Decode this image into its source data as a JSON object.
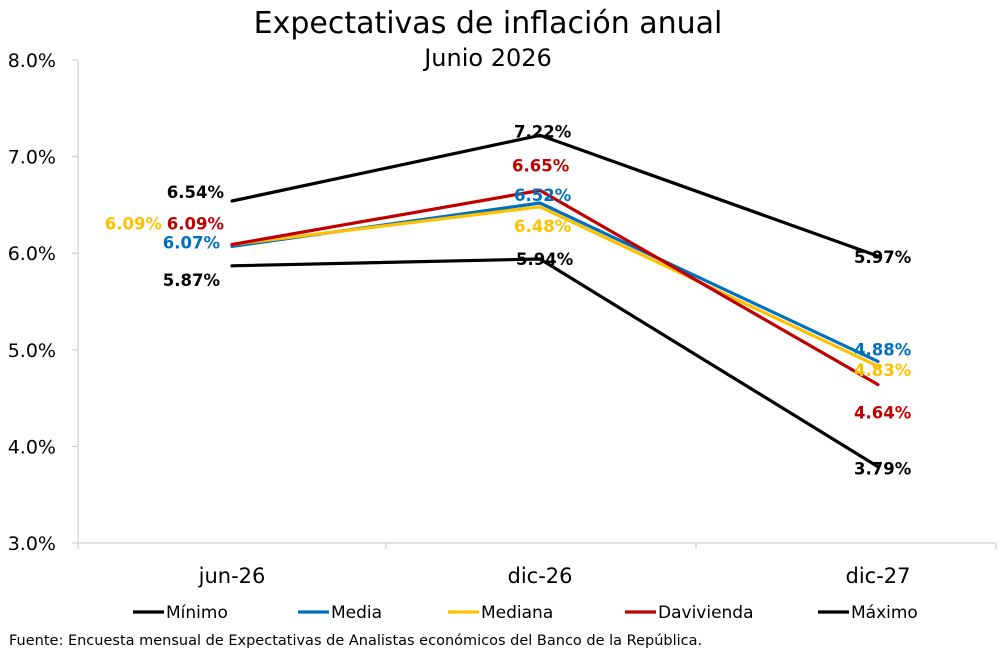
{
  "chart_data": {
    "type": "line",
    "title": "Expectativas de inflación anual",
    "subtitle": "Junio 2026",
    "categories": [
      "jun-26",
      "dic-26",
      "dic-27"
    ],
    "ylim": [
      3.0,
      8.0
    ],
    "yticks": [
      "3.0%",
      "4.0%",
      "5.0%",
      "6.0%",
      "7.0%",
      "8.0%"
    ],
    "grid": false,
    "legend_position": "bottom",
    "series": [
      {
        "name": "Mínimo",
        "color": "#000000",
        "values": [
          5.87,
          5.94,
          3.79
        ],
        "labels": [
          "5.87%",
          "5.94%",
          "3.79%"
        ]
      },
      {
        "name": "Media",
        "color": "#0070C0",
        "values": [
          6.07,
          6.52,
          4.88
        ],
        "labels": [
          "6.07%",
          "6.52%",
          "4.88%"
        ]
      },
      {
        "name": "Mediana",
        "color": "#FFC000",
        "values": [
          6.09,
          6.48,
          4.83
        ],
        "labels": [
          "6.09%",
          "6.48%",
          "4.83%"
        ]
      },
      {
        "name": "Davivienda",
        "color": "#C00000",
        "values": [
          6.09,
          6.65,
          4.64
        ],
        "labels": [
          "6.09%",
          "6.65%",
          "4.64%"
        ]
      },
      {
        "name": "Máximo",
        "color": "#000000",
        "values": [
          6.54,
          7.22,
          5.97
        ],
        "labels": [
          "6.54%",
          "7.22%",
          "5.97%"
        ]
      }
    ]
  },
  "source_note": "Fuente: Encuesta mensual de Expectativas de Analistas económicos del Banco de la República."
}
